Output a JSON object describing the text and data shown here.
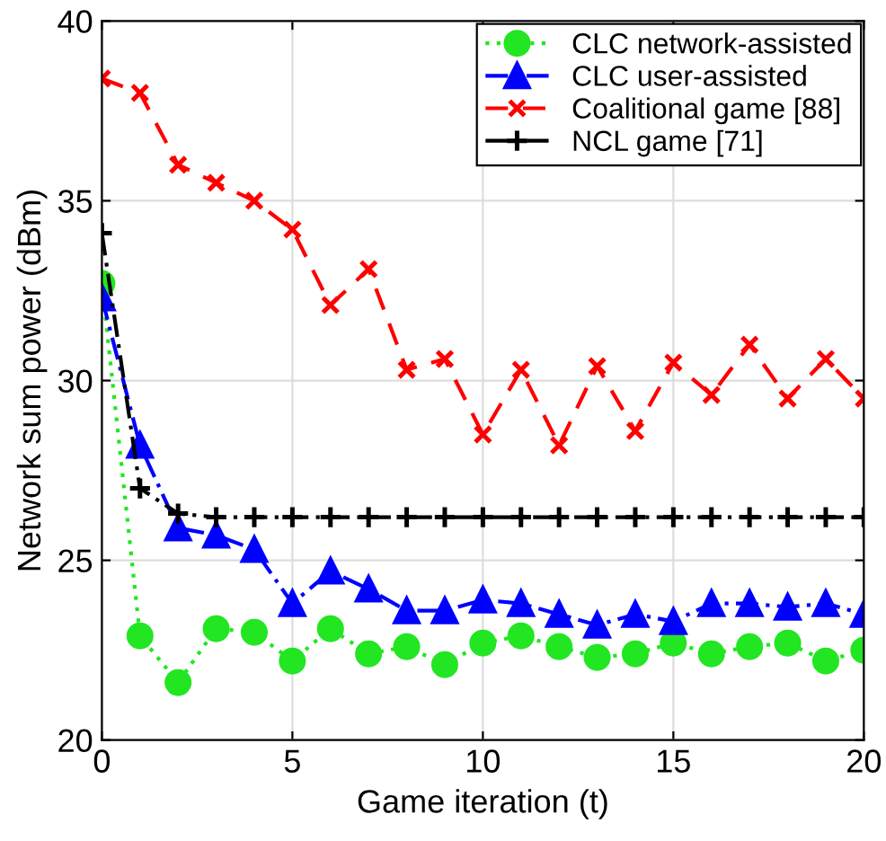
{
  "chart_data": {
    "type": "line",
    "xlabel": "Game iteration (t)",
    "ylabel": "Network sum power (dBm)",
    "x": [
      0,
      1,
      2,
      3,
      4,
      5,
      6,
      7,
      8,
      9,
      10,
      11,
      12,
      13,
      14,
      15,
      16,
      17,
      18,
      19,
      20
    ],
    "xlim": [
      0,
      20
    ],
    "xticks": [
      0,
      5,
      10,
      15,
      20
    ],
    "ylim": [
      20,
      40
    ],
    "yticks": [
      20,
      25,
      30,
      35,
      40
    ],
    "grid": true,
    "legend": "top right",
    "series": [
      {
        "name": "CLC network-assisted",
        "color": "#22e622",
        "marker": "circle",
        "line_style": "dotted",
        "values": [
          32.7,
          22.9,
          21.6,
          23.1,
          23.0,
          22.2,
          23.1,
          22.4,
          22.6,
          22.1,
          22.7,
          22.9,
          22.6,
          22.3,
          22.4,
          22.7,
          22.4,
          22.6,
          22.7,
          22.2,
          22.5
        ]
      },
      {
        "name": "CLC user-assisted",
        "color": "#0000ff",
        "marker": "triangle",
        "line_style": "dashdot",
        "values": [
          32.3,
          28.2,
          25.9,
          25.7,
          25.3,
          23.8,
          24.7,
          24.2,
          23.6,
          23.6,
          23.9,
          23.8,
          23.5,
          23.2,
          23.5,
          23.3,
          23.8,
          23.8,
          23.7,
          23.8,
          23.5
        ]
      },
      {
        "name": "Coalitional game [88]",
        "color": "#ff0000",
        "marker": "cross",
        "line_style": "dashed",
        "values": [
          38.4,
          38.0,
          36.0,
          35.5,
          35.0,
          34.2,
          32.1,
          33.1,
          30.3,
          30.6,
          28.5,
          30.3,
          28.2,
          30.4,
          28.6,
          30.5,
          29.6,
          31.0,
          29.5,
          30.6,
          29.5
        ]
      },
      {
        "name": "NCL game [71]",
        "color": "#000000",
        "marker": "plus",
        "line_style": "dashdot",
        "values": [
          34.1,
          27.0,
          26.3,
          26.2,
          26.2,
          26.2,
          26.2,
          26.2,
          26.2,
          26.2,
          26.2,
          26.2,
          26.2,
          26.2,
          26.2,
          26.2,
          26.2,
          26.2,
          26.2,
          26.2,
          26.2
        ]
      }
    ]
  }
}
